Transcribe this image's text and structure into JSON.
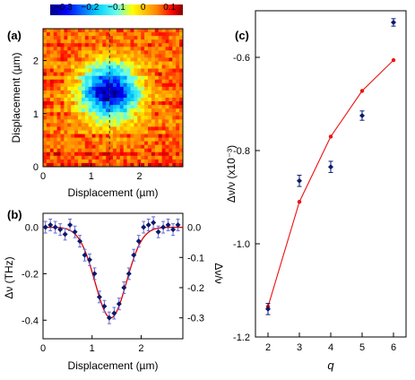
{
  "chart_data": [
    {
      "panel": "(a)",
      "type": "heatmap",
      "xlabel": "Displacement (µm)",
      "ylabel": "Displacement (µm)",
      "xlim": [
        0,
        2.9
      ],
      "ylim": [
        0,
        2.6
      ],
      "xticks": [
        "0",
        "1",
        "2"
      ],
      "yticks": [
        "0",
        "1",
        "2"
      ],
      "colorbar": {
        "ticks": [
          "−0.3",
          "−0.2",
          "−0.1",
          "0",
          "0.1"
        ],
        "min": -0.35,
        "max": 0.15
      },
      "spot_center": [
        1.38,
        1.42
      ],
      "spot_min": -0.33,
      "background": 0.07,
      "guide_line_x": 1.38
    },
    {
      "panel": "(b)",
      "type": "scatter",
      "xlabel": "Displacement (µm)",
      "ylabel": "Δν (THz)",
      "ylabel_right": "Δν/ν",
      "xlim": [
        0,
        2.85
      ],
      "ylim": [
        -0.48,
        0.06
      ],
      "xticks": [
        "0",
        "1",
        "2"
      ],
      "yticks": [
        "0.0",
        "-0.2",
        "-0.4"
      ],
      "yticks_right": [
        "0.0",
        "-0.1",
        "-0.2",
        "-0.3"
      ],
      "x": [
        0.05,
        0.15,
        0.25,
        0.35,
        0.45,
        0.55,
        0.65,
        0.75,
        0.85,
        0.95,
        1.05,
        1.15,
        1.25,
        1.35,
        1.45,
        1.55,
        1.65,
        1.75,
        1.85,
        1.95,
        2.05,
        2.15,
        2.25,
        2.35,
        2.45,
        2.55,
        2.65,
        2.75
      ],
      "y": [
        0.0,
        0.01,
        0.0,
        -0.01,
        -0.03,
        0.01,
        -0.02,
        -0.06,
        -0.12,
        -0.14,
        -0.2,
        -0.3,
        -0.34,
        -0.39,
        -0.37,
        -0.33,
        -0.26,
        -0.2,
        -0.12,
        -0.06,
        0.0,
        0.01,
        0.02,
        -0.02,
        0.0,
        0.01,
        -0.01,
        0.01
      ],
      "yerr": 0.025,
      "fit_center": 1.38,
      "fit_sigma": 0.32,
      "fit_amplitude": -0.39
    },
    {
      "panel": "(c)",
      "type": "line",
      "xlabel": "q",
      "ylabel": "Δν/ν (x10⁻³)",
      "xlim": [
        1.6,
        6.4
      ],
      "ylim": [
        -1.2,
        -0.5
      ],
      "xticks": [
        "2",
        "3",
        "4",
        "5",
        "6"
      ],
      "yticks": [
        "-0.6",
        "-0.8",
        "-1.0",
        "-1.2"
      ],
      "series": [
        {
          "kind": "measured",
          "x": [
            2,
            3,
            4,
            5,
            6
          ],
          "y": [
            -1.14,
            -0.865,
            -0.835,
            -0.725,
            -0.525
          ],
          "yerr": [
            0.012,
            0.012,
            0.012,
            0.01,
            0.008
          ]
        },
        {
          "kind": "calculated",
          "x": [
            2,
            3,
            4,
            5,
            6
          ],
          "y": [
            -1.135,
            -0.91,
            -0.77,
            -0.672,
            -0.606
          ]
        }
      ]
    }
  ]
}
